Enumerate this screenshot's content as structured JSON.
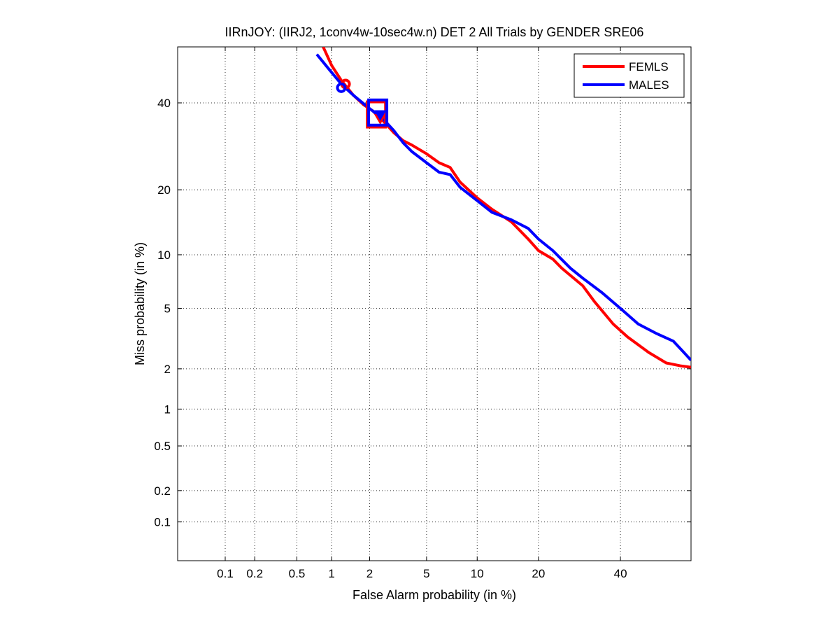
{
  "chart_data": {
    "type": "line",
    "scale": "normal-deviate (probit) on both axes",
    "title": "IIRnJOY: (IIRJ2, 1conv4w-10sec4w.n) DET 2 All Trials by GENDER SRE06",
    "xlabel": "False Alarm probability (in %)",
    "ylabel": "Miss probability (in %)",
    "xlim": [
      0.03,
      60
    ],
    "ylim": [
      0.04,
      55
    ],
    "x_ticks": [
      0.1,
      0.2,
      0.5,
      1,
      2,
      5,
      10,
      20,
      40
    ],
    "x_tick_labels": [
      "0.1",
      "0.2",
      "0.5",
      "1",
      "2",
      "5",
      "10",
      "20",
      "40"
    ],
    "y_ticks": [
      0.1,
      0.2,
      0.5,
      1,
      2,
      5,
      10,
      20,
      40
    ],
    "y_tick_labels": [
      "0.1",
      "0.2",
      "0.5",
      "1",
      "2",
      "5",
      "10",
      "20",
      "40"
    ],
    "grid": true,
    "legend_position": "top-right",
    "series": [
      {
        "name": "FEMLS",
        "color": "#ff0000",
        "points": [
          [
            0.85,
            55
          ],
          [
            1.0,
            50
          ],
          [
            1.2,
            46
          ],
          [
            1.5,
            42
          ],
          [
            1.8,
            39.5
          ],
          [
            2.1,
            38
          ],
          [
            2.5,
            35.5
          ],
          [
            3.0,
            32.5
          ],
          [
            3.5,
            30.5
          ],
          [
            4.0,
            29.5
          ],
          [
            5.0,
            27.5
          ],
          [
            6.0,
            25.5
          ],
          [
            7.0,
            24.5
          ],
          [
            8.0,
            21.5
          ],
          [
            10.0,
            18.5
          ],
          [
            12.0,
            16.5
          ],
          [
            15.0,
            14.5
          ],
          [
            18.0,
            12.0
          ],
          [
            20.0,
            10.5
          ],
          [
            23.0,
            9.5
          ],
          [
            25.0,
            8.5
          ],
          [
            30.0,
            6.8
          ],
          [
            33.0,
            5.5
          ],
          [
            38.0,
            4.0
          ],
          [
            42.0,
            3.3
          ],
          [
            48.0,
            2.6
          ],
          [
            53.0,
            2.2
          ],
          [
            57.0,
            2.1
          ],
          [
            60.0,
            2.05
          ]
        ],
        "markers": [
          {
            "shape": "circle",
            "x": 1.3,
            "y": 45
          },
          {
            "shape": "square",
            "x": 2.25,
            "y": 37
          },
          {
            "shape": "triangle",
            "x": 2.4,
            "y": 36
          }
        ]
      },
      {
        "name": "MALES",
        "color": "#0000ff",
        "points": [
          [
            0.75,
            53
          ],
          [
            0.95,
            49
          ],
          [
            1.2,
            45
          ],
          [
            1.5,
            42
          ],
          [
            2.0,
            38.5
          ],
          [
            2.5,
            36
          ],
          [
            3.0,
            33
          ],
          [
            3.5,
            30
          ],
          [
            4.0,
            28
          ],
          [
            5.0,
            25.5
          ],
          [
            6.0,
            23.5
          ],
          [
            7.0,
            23
          ],
          [
            8.0,
            20.5
          ],
          [
            10.0,
            18.0
          ],
          [
            12.0,
            16.0
          ],
          [
            15.0,
            14.8
          ],
          [
            18.0,
            13.5
          ],
          [
            20.0,
            12.0
          ],
          [
            23.0,
            10.5
          ],
          [
            27.0,
            8.5
          ],
          [
            30.0,
            7.5
          ],
          [
            35.0,
            6.2
          ],
          [
            40.0,
            5.0
          ],
          [
            45.0,
            4.0
          ],
          [
            50.0,
            3.5
          ],
          [
            55.0,
            3.1
          ],
          [
            58.0,
            2.6
          ],
          [
            60.0,
            2.3
          ]
        ],
        "markers": [
          {
            "shape": "circle",
            "x": 1.2,
            "y": 44
          },
          {
            "shape": "square",
            "x": 2.3,
            "y": 37.5
          },
          {
            "shape": "triangle",
            "x": 2.4,
            "y": 37
          }
        ]
      }
    ]
  }
}
